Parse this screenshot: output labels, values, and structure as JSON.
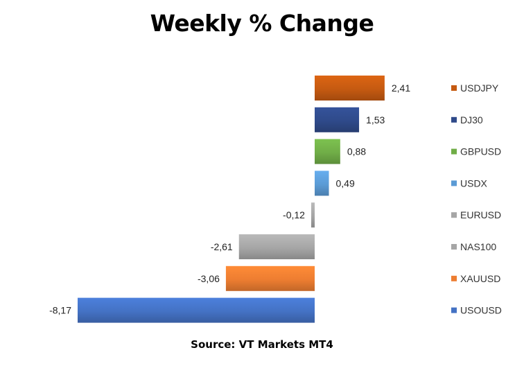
{
  "title": "Weekly % Change",
  "source": "Source: VT Markets MT4",
  "chart_data": {
    "type": "bar",
    "orientation": "horizontal",
    "categories": [
      "USDJPY",
      "DJ30",
      "GBPUSD",
      "USDX",
      "EURUSD",
      "NAS100",
      "XAUUSD",
      "USOUSD"
    ],
    "values": [
      2.41,
      1.53,
      0.88,
      0.49,
      -0.12,
      -2.61,
      -3.06,
      -8.17
    ],
    "value_labels": [
      "2,41",
      "1,53",
      "0,88",
      "0,49",
      "-0,12",
      "-2,61",
      "-3,06",
      "-8,17"
    ],
    "colors": [
      "#c55a11",
      "#2f4a8a",
      "#70ad47",
      "#5b9bd5",
      "#a6a6a6",
      "#a6a6a6",
      "#ed7d31",
      "#4472c4"
    ],
    "title": "Weekly % Change",
    "xlabel": "",
    "ylabel": "",
    "xlim": [
      -8.17,
      2.41
    ],
    "grid": false,
    "legend_position": "right"
  }
}
